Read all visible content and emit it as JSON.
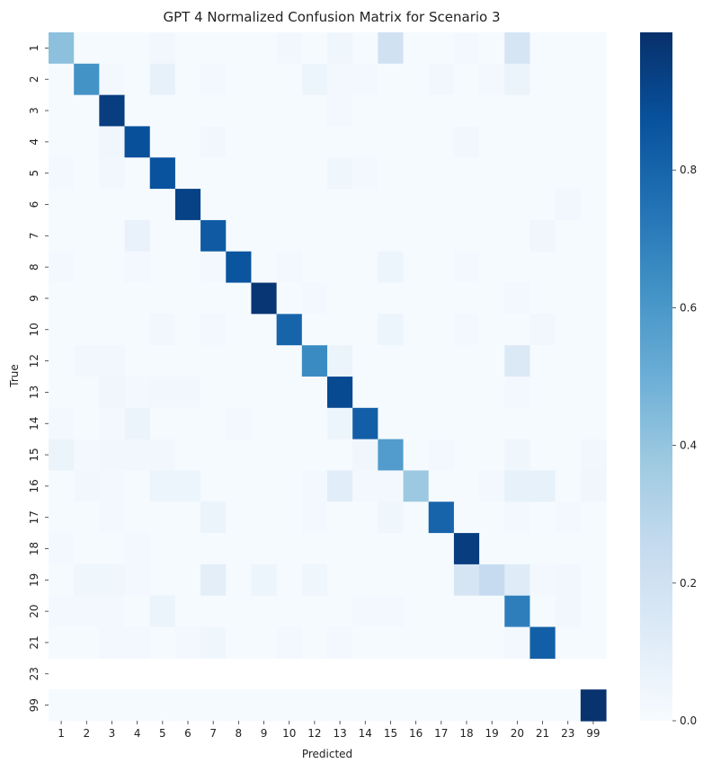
{
  "chart_data": {
    "type": "heatmap",
    "title": "GPT 4 Normalized Confusion Matrix for Scenario 3",
    "xlabel": "Predicted",
    "ylabel": "True",
    "x_categories": [
      "1",
      "2",
      "3",
      "4",
      "5",
      "6",
      "7",
      "8",
      "9",
      "10",
      "12",
      "13",
      "14",
      "15",
      "16",
      "17",
      "18",
      "19",
      "20",
      "21",
      "23",
      "99"
    ],
    "y_categories": [
      "1",
      "2",
      "3",
      "4",
      "5",
      "6",
      "7",
      "8",
      "9",
      "10",
      "12",
      "13",
      "14",
      "15",
      "16",
      "17",
      "18",
      "19",
      "20",
      "21",
      "23",
      "99"
    ],
    "values": [
      [
        0.42,
        0.01,
        0.01,
        0.01,
        0.03,
        0.01,
        0.01,
        0.01,
        0.01,
        0.03,
        0.01,
        0.04,
        0.01,
        0.2,
        0.01,
        0.01,
        0.02,
        0.01,
        0.17,
        0.01,
        0.01,
        0.01
      ],
      [
        0.01,
        0.62,
        0.02,
        0.01,
        0.08,
        0.01,
        0.02,
        0.01,
        0.01,
        0.01,
        0.05,
        0.02,
        0.02,
        0.01,
        0.01,
        0.03,
        0.01,
        0.02,
        0.06,
        0.01,
        0.01,
        0.01
      ],
      [
        0.01,
        0.01,
        0.95,
        0.01,
        0.01,
        0.01,
        0.01,
        0.01,
        0.01,
        0.01,
        0.01,
        0.02,
        0.01,
        0.01,
        0.01,
        0.01,
        0.01,
        0.01,
        0.01,
        0.01,
        0.01,
        0.01
      ],
      [
        0.01,
        0.01,
        0.04,
        0.88,
        0.01,
        0.01,
        0.03,
        0.01,
        0.01,
        0.01,
        0.01,
        0.01,
        0.01,
        0.01,
        0.01,
        0.01,
        0.03,
        0.01,
        0.01,
        0.01,
        0.01,
        0.01
      ],
      [
        0.02,
        0.01,
        0.03,
        0.01,
        0.87,
        0.01,
        0.01,
        0.01,
        0.01,
        0.01,
        0.01,
        0.04,
        0.02,
        0.01,
        0.01,
        0.01,
        0.01,
        0.01,
        0.01,
        0.01,
        0.01,
        0.01
      ],
      [
        0.01,
        0.01,
        0.01,
        0.01,
        0.01,
        0.93,
        0.01,
        0.01,
        0.01,
        0.01,
        0.01,
        0.01,
        0.01,
        0.01,
        0.01,
        0.01,
        0.01,
        0.01,
        0.01,
        0.01,
        0.03,
        0.01
      ],
      [
        0.01,
        0.01,
        0.01,
        0.07,
        0.01,
        0.01,
        0.84,
        0.01,
        0.01,
        0.01,
        0.01,
        0.01,
        0.01,
        0.01,
        0.01,
        0.01,
        0.01,
        0.01,
        0.01,
        0.04,
        0.01,
        0.01
      ],
      [
        0.02,
        0.01,
        0.01,
        0.02,
        0.01,
        0.01,
        0.02,
        0.86,
        0.01,
        0.02,
        0.01,
        0.01,
        0.01,
        0.05,
        0.01,
        0.01,
        0.02,
        0.01,
        0.01,
        0.01,
        0.01,
        0.01
      ],
      [
        0.01,
        0.01,
        0.01,
        0.01,
        0.01,
        0.01,
        0.01,
        0.01,
        0.98,
        0.01,
        0.02,
        0.01,
        0.01,
        0.01,
        0.01,
        0.01,
        0.01,
        0.01,
        0.02,
        0.01,
        0.01,
        0.01
      ],
      [
        0.01,
        0.01,
        0.01,
        0.01,
        0.03,
        0.01,
        0.02,
        0.01,
        0.01,
        0.8,
        0.01,
        0.01,
        0.01,
        0.05,
        0.01,
        0.01,
        0.02,
        0.01,
        0.01,
        0.03,
        0.01,
        0.01
      ],
      [
        0.01,
        0.03,
        0.03,
        0.01,
        0.01,
        0.01,
        0.01,
        0.01,
        0.01,
        0.01,
        0.65,
        0.06,
        0.01,
        0.01,
        0.01,
        0.01,
        0.01,
        0.01,
        0.14,
        0.01,
        0.01,
        0.01
      ],
      [
        0.01,
        0.01,
        0.04,
        0.02,
        0.03,
        0.03,
        0.01,
        0.01,
        0.01,
        0.01,
        0.01,
        0.9,
        0.01,
        0.01,
        0.01,
        0.01,
        0.01,
        0.01,
        0.02,
        0.01,
        0.01,
        0.01
      ],
      [
        0.02,
        0.01,
        0.02,
        0.06,
        0.01,
        0.01,
        0.01,
        0.02,
        0.01,
        0.01,
        0.01,
        0.05,
        0.82,
        0.01,
        0.01,
        0.01,
        0.01,
        0.01,
        0.01,
        0.01,
        0.01,
        0.01
      ],
      [
        0.06,
        0.02,
        0.03,
        0.03,
        0.03,
        0.01,
        0.01,
        0.01,
        0.01,
        0.01,
        0.01,
        0.01,
        0.04,
        0.58,
        0.01,
        0.02,
        0.01,
        0.01,
        0.04,
        0.01,
        0.01,
        0.03
      ],
      [
        0.01,
        0.03,
        0.02,
        0.01,
        0.05,
        0.05,
        0.01,
        0.01,
        0.01,
        0.01,
        0.02,
        0.11,
        0.02,
        0.02,
        0.38,
        0.01,
        0.01,
        0.02,
        0.08,
        0.08,
        0.01,
        0.04
      ],
      [
        0.01,
        0.01,
        0.02,
        0.01,
        0.01,
        0.01,
        0.06,
        0.01,
        0.01,
        0.01,
        0.02,
        0.01,
        0.01,
        0.04,
        0.01,
        0.8,
        0.01,
        0.01,
        0.02,
        0.01,
        0.02,
        0.01
      ],
      [
        0.02,
        0.01,
        0.01,
        0.02,
        0.01,
        0.01,
        0.01,
        0.01,
        0.01,
        0.01,
        0.01,
        0.01,
        0.01,
        0.01,
        0.01,
        0.01,
        0.95,
        0.01,
        0.01,
        0.01,
        0.01,
        0.01
      ],
      [
        0.01,
        0.04,
        0.04,
        0.02,
        0.01,
        0.01,
        0.1,
        0.01,
        0.05,
        0.01,
        0.04,
        0.01,
        0.01,
        0.01,
        0.01,
        0.01,
        0.17,
        0.25,
        0.12,
        0.02,
        0.03,
        0.01
      ],
      [
        0.02,
        0.02,
        0.02,
        0.01,
        0.06,
        0.01,
        0.01,
        0.01,
        0.01,
        0.01,
        0.01,
        0.01,
        0.02,
        0.02,
        0.01,
        0.01,
        0.01,
        0.01,
        0.7,
        0.01,
        0.03,
        0.01
      ],
      [
        0.01,
        0.01,
        0.02,
        0.02,
        0.01,
        0.02,
        0.04,
        0.01,
        0.01,
        0.02,
        0.01,
        0.02,
        0.01,
        0.01,
        0.01,
        0.01,
        0.01,
        0.01,
        0.02,
        0.82,
        0.01,
        0.01
      ],
      [
        null,
        null,
        null,
        null,
        null,
        null,
        null,
        null,
        null,
        null,
        null,
        null,
        null,
        null,
        null,
        null,
        null,
        null,
        null,
        null,
        null,
        null
      ],
      [
        0.01,
        0.01,
        0.01,
        0.01,
        0.01,
        0.01,
        0.01,
        0.01,
        0.01,
        0.01,
        0.01,
        0.01,
        0.01,
        0.01,
        0.01,
        0.01,
        0.01,
        0.01,
        0.01,
        0.01,
        0.01,
        0.99
      ]
    ],
    "vmin": 0.0,
    "vmax": 1.0,
    "colormap": "Blues",
    "colormap_stops": [
      "#f7fbff",
      "#deebf7",
      "#c6dbef",
      "#9ecae1",
      "#6baed6",
      "#4292c6",
      "#2171b5",
      "#08519c",
      "#08306b"
    ],
    "colorbar_ticks": [
      "0.0",
      "0.2",
      "0.4",
      "0.6",
      "0.8"
    ],
    "grid": false,
    "legend": "colorbar-right"
  }
}
